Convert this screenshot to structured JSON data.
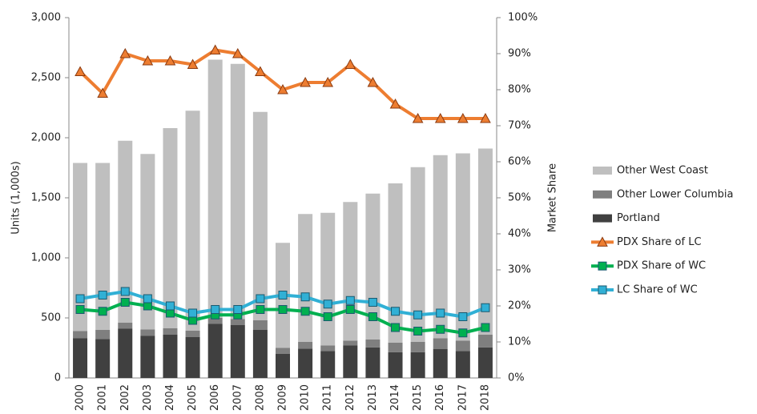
{
  "chart_data": {
    "type": "bar",
    "stacked": true,
    "y_label": "Units (1,000s)",
    "y2_label": "Market Share",
    "categories": [
      "2000",
      "2001",
      "2002",
      "2003",
      "2004",
      "2005",
      "2006",
      "2007",
      "2008",
      "2009",
      "2010",
      "2011",
      "2012",
      "2013",
      "2014",
      "2015",
      "2016",
      "2017",
      "2018"
    ],
    "ylim": [
      0,
      3000
    ],
    "yticks": [
      0,
      500,
      {
        "value": 1000,
        "label": "1,000"
      },
      {
        "value": 1500,
        "label": "1,500"
      },
      {
        "value": 2000,
        "label": "2,000"
      },
      {
        "value": 2500,
        "label": "2,500"
      },
      {
        "value": 3000,
        "label": "3,000"
      }
    ],
    "y2lim": [
      0,
      100
    ],
    "y2ticks": [
      {
        "value": 0,
        "label": "0%"
      },
      {
        "value": 10,
        "label": "10%"
      },
      {
        "value": 20,
        "label": "20%"
      },
      {
        "value": 30,
        "label": "30%"
      },
      {
        "value": 40,
        "label": "40%"
      },
      {
        "value": 50,
        "label": "50%"
      },
      {
        "value": 60,
        "label": "60%"
      },
      {
        "value": 70,
        "label": "70%"
      },
      {
        "value": 80,
        "label": "80%"
      },
      {
        "value": 90,
        "label": "90%"
      },
      {
        "value": 100,
        "label": "100%"
      }
    ],
    "grid": false,
    "legend": "right",
    "series": [
      {
        "name": "Portland",
        "type": "bar",
        "color": "#404040",
        "values": [
          330,
          325,
          410,
          350,
          360,
          340,
          450,
          440,
          400,
          200,
          245,
          225,
          270,
          255,
          215,
          215,
          240,
          225,
          255
        ]
      },
      {
        "name": "Other Lower Columbia",
        "type": "bar",
        "color": "#7f7f7f",
        "values": [
          60,
          75,
          50,
          55,
          55,
          55,
          50,
          50,
          80,
          50,
          55,
          45,
          40,
          65,
          80,
          85,
          90,
          85,
          105
        ]
      },
      {
        "name": "Other West Coast",
        "type": "bar",
        "color": "#bfbfbf",
        "values": [
          1400,
          1390,
          1515,
          1460,
          1665,
          1830,
          2150,
          2125,
          1735,
          875,
          1065,
          1105,
          1155,
          1215,
          1325,
          1455,
          1525,
          1560,
          1550
        ]
      },
      {
        "name": "PDX Share of LC",
        "type": "line",
        "axis": "y2",
        "marker": "triangle",
        "color": "#ed7d31",
        "values": [
          85,
          79,
          90,
          88,
          88,
          87,
          91,
          90,
          85,
          80,
          82,
          82,
          87,
          82,
          76,
          72,
          72,
          72,
          72
        ]
      },
      {
        "name": "PDX Share of WC",
        "type": "line",
        "axis": "y2",
        "marker": "square",
        "color": "#00b050",
        "values": [
          19,
          18.5,
          21,
          20,
          18,
          16,
          17.5,
          17.5,
          19,
          19,
          18.5,
          17,
          19,
          17,
          14,
          13,
          13.5,
          12.5,
          14
        ]
      },
      {
        "name": "LC Share of WC",
        "type": "line",
        "axis": "y2",
        "marker": "square",
        "color": "#31b0d5",
        "values": [
          22,
          23,
          24,
          22,
          20,
          18,
          19,
          19,
          22,
          23,
          22.5,
          20.5,
          21.5,
          21,
          18.5,
          17.5,
          18,
          17,
          19.5
        ]
      }
    ]
  }
}
